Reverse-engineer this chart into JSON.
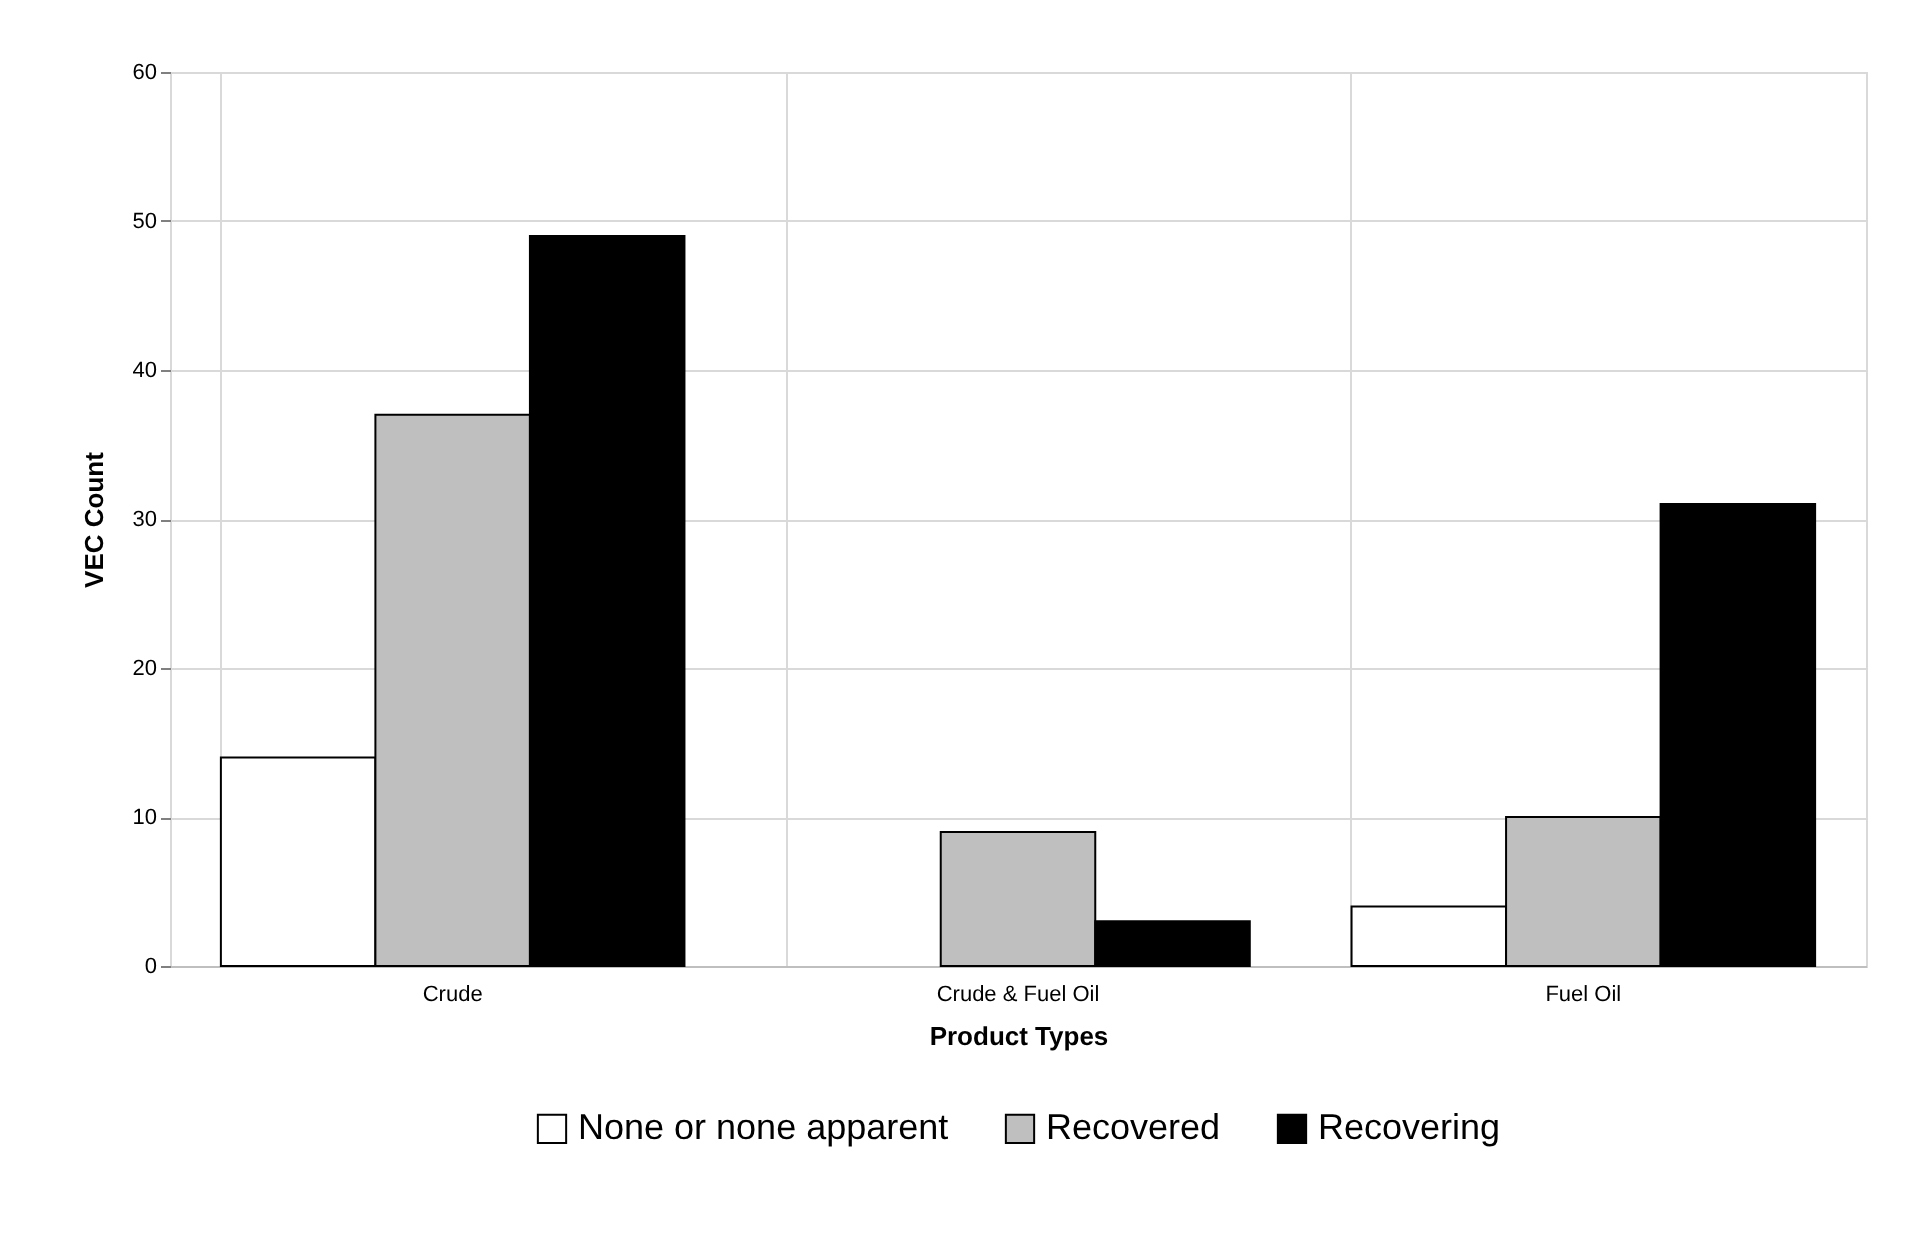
{
  "chart_data": {
    "type": "bar",
    "xlabel": "Product Types",
    "ylabel": "VEC Count",
    "categories": [
      "Crude",
      "Crude & Fuel Oil",
      "Fuel Oil"
    ],
    "series": [
      {
        "name": "None or none apparent",
        "color": "#ffffff",
        "values": [
          14,
          null,
          4
        ]
      },
      {
        "name": "Recovered",
        "color": "#bfbfbf",
        "values": [
          37,
          9,
          10
        ]
      },
      {
        "name": "Recovering",
        "color": "#000000",
        "values": [
          49,
          3,
          31
        ]
      }
    ],
    "ylim": [
      0,
      60
    ],
    "yticks": [
      0,
      10,
      20,
      30,
      40,
      50,
      60
    ],
    "grid": true,
    "legend": "bottom"
  }
}
